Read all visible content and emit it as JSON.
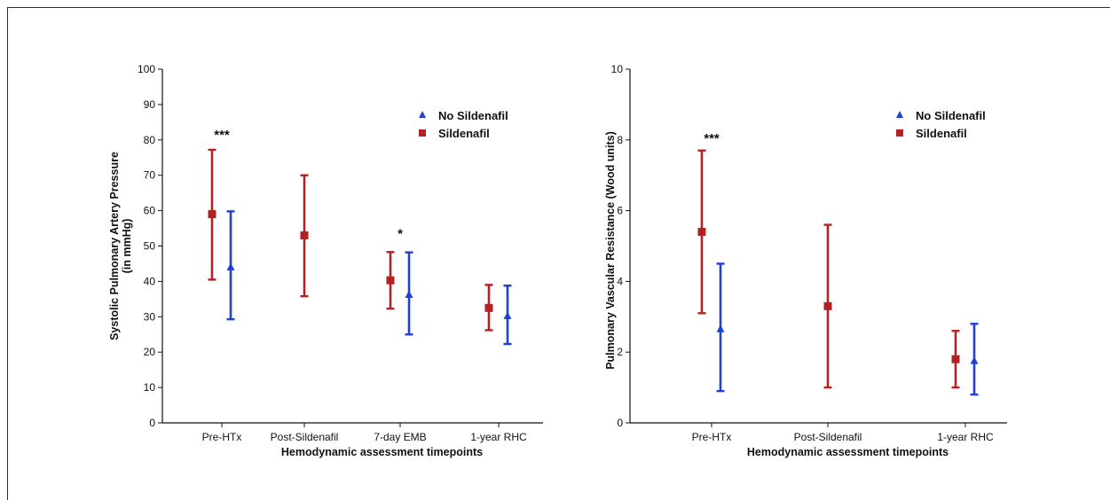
{
  "chart_data": [
    {
      "type": "scatter",
      "subtype": "mean-with-error-bars",
      "xlabel": "Hemodynamic assessment timepoints",
      "ylabel": [
        "Systolic Pulmonary Artery Pressure",
        "(in mmHg)"
      ],
      "ylim": [
        0,
        100
      ],
      "yticks": [
        0,
        10,
        20,
        30,
        40,
        50,
        60,
        70,
        80,
        90,
        100
      ],
      "categories": [
        "Pre-HTx",
        "Post-Sildenafil",
        "7-day EMB",
        "1-year RHC"
      ],
      "legend_position": "top-right",
      "series": [
        {
          "name": "Sildenafil",
          "color": "#b22222",
          "marker": "square",
          "points": [
            {
              "category": "Pre-HTx",
              "mean": 59,
              "low": 40.5,
              "high": 77.2
            },
            {
              "category": "Post-Sildenafil",
              "mean": 53,
              "low": 35.8,
              "high": 70
            },
            {
              "category": "7-day EMB",
              "mean": 40.3,
              "low": 32.3,
              "high": 48.3
            },
            {
              "category": "1-year RHC",
              "mean": 32.5,
              "low": 26.2,
              "high": 39
            }
          ]
        },
        {
          "name": "No Sildenafil",
          "color": "#1f3fd6",
          "marker": "triangle",
          "points": [
            {
              "category": "Pre-HTx",
              "mean": 44,
              "low": 29.3,
              "high": 59.8
            },
            {
              "category": "7-day EMB",
              "mean": 36.2,
              "low": 25,
              "high": 48.2
            },
            {
              "category": "1-year RHC",
              "mean": 30.2,
              "low": 22.3,
              "high": 38.8
            }
          ]
        }
      ],
      "annotations": [
        {
          "text": "***",
          "category": "Pre-HTx",
          "y": 81.5
        },
        {
          "text": "*",
          "category": "7-day EMB",
          "y": 53.5
        }
      ]
    },
    {
      "type": "scatter",
      "subtype": "mean-with-error-bars",
      "xlabel": "Hemodynamic assessment timepoints",
      "ylabel": [
        "Pulmonary Vascular Resistance (Wood units)"
      ],
      "ylim": [
        0,
        10
      ],
      "yticks": [
        0,
        2,
        4,
        6,
        8,
        10
      ],
      "categories": [
        "Pre-HTx",
        "Post-Sildenafil",
        "1-year RHC"
      ],
      "legend_position": "top-right",
      "series": [
        {
          "name": "Sildenafil",
          "color": "#b22222",
          "marker": "square",
          "points": [
            {
              "category": "Pre-HTx",
              "mean": 5.4,
              "low": 3.1,
              "high": 7.7
            },
            {
              "category": "Post-Sildenafil",
              "mean": 3.3,
              "low": 1.0,
              "high": 5.6
            },
            {
              "category": "1-year RHC",
              "mean": 1.8,
              "low": 1.0,
              "high": 2.6
            }
          ]
        },
        {
          "name": "No Sildenafil",
          "color": "#1f3fd6",
          "marker": "triangle",
          "points": [
            {
              "category": "Pre-HTx",
              "mean": 2.65,
              "low": 0.9,
              "high": 4.5
            },
            {
              "category": "1-year RHC",
              "mean": 1.75,
              "low": 0.8,
              "high": 2.8
            }
          ]
        }
      ],
      "annotations": [
        {
          "text": "***",
          "category": "Pre-HTx",
          "y": 8.05
        }
      ]
    }
  ]
}
